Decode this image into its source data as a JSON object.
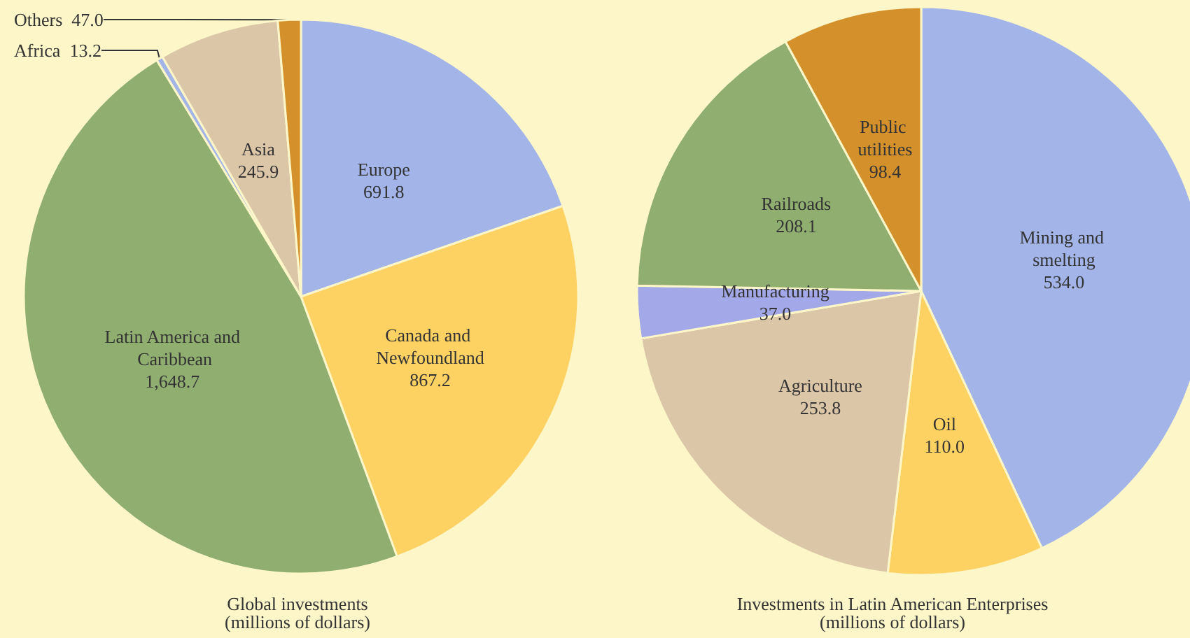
{
  "chart_data": [
    {
      "type": "pie",
      "title": "Global investments",
      "subtitle": "(millions of dollars)",
      "categories": [
        "Europe",
        "Canada and Newfoundland",
        "Latin America and Caribbean",
        "Africa",
        "Asia",
        "Others"
      ],
      "values": [
        691.8,
        867.2,
        1648.7,
        13.2,
        245.9,
        47.0
      ],
      "value_labels": [
        "691.8",
        "867.2",
        "1,648.7",
        "13.2",
        "245.9",
        "47.0"
      ],
      "colors": [
        "#a3b4e8",
        "#fdd263",
        "#8fae70",
        "#a3b4e8",
        "#dcc6a8",
        "#d4912b"
      ],
      "legend": false
    },
    {
      "type": "pie",
      "title": "Investments in Latin American Enterprises",
      "subtitle": "(millions of dollars)",
      "categories": [
        "Mining and smelting",
        "Oil",
        "Agriculture",
        "Manufacturing",
        "Railroads",
        "Public utilities"
      ],
      "values": [
        534.0,
        110.0,
        253.8,
        37.0,
        208.1,
        98.4
      ],
      "value_labels": [
        "534.0",
        "110.0",
        "253.8",
        "37.0",
        "208.1",
        "98.4"
      ],
      "colors": [
        "#a3b4e8",
        "#fdd263",
        "#dcc6a8",
        "#a3a9e8",
        "#8fae70",
        "#d4912b"
      ],
      "legend": false
    }
  ]
}
